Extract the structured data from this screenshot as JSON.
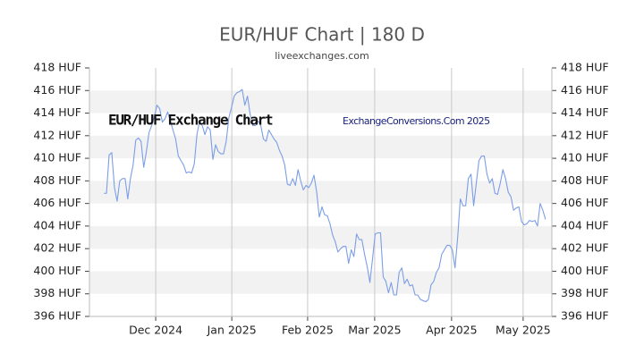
{
  "chart_data": {
    "type": "line",
    "title": "EUR/HUF Chart | 180 D",
    "subtitle": "liveexchanges.com",
    "annotations": [
      "EUR/HUF Exchange Chart",
      "ExchangeConversions.Com 2025"
    ],
    "color": "#7b9ee6",
    "grid": true,
    "xlim": [
      -5.4,
      168.4
    ],
    "xticks": [
      {
        "value": 19.5,
        "label": "Dec 2024"
      },
      {
        "value": 48.1,
        "label": "Jan 2025"
      },
      {
        "value": 76.6,
        "label": "Feb 2025"
      },
      {
        "value": 101.8,
        "label": "Mar 2025"
      },
      {
        "value": 130.7,
        "label": "Apr 2025"
      },
      {
        "value": 157.6,
        "label": "May 2025"
      }
    ],
    "ylim": [
      396,
      418
    ],
    "yticks": [
      {
        "value": 396,
        "label": "396 HUF"
      },
      {
        "value": 398,
        "label": "398 HUF"
      },
      {
        "value": 400,
        "label": "400 HUF"
      },
      {
        "value": 402,
        "label": "402 HUF"
      },
      {
        "value": 404,
        "label": "404 HUF"
      },
      {
        "value": 406,
        "label": "406 HUF"
      },
      {
        "value": 408,
        "label": "408 HUF"
      },
      {
        "value": 410,
        "label": "410 HUF"
      },
      {
        "value": 412,
        "label": "412 HUF"
      },
      {
        "value": 414,
        "label": "414 HUF"
      },
      {
        "value": 416,
        "label": "416 HUF"
      },
      {
        "value": 418,
        "label": "418 HUF"
      }
    ],
    "values": [
      406.9,
      406.9,
      410.3,
      410.5,
      407.4,
      406.2,
      408.0,
      408.2,
      408.2,
      406.4,
      408.2,
      409.4,
      411.6,
      411.8,
      411.5,
      409.2,
      410.6,
      412.3,
      412.9,
      413.7,
      414.7,
      414.4,
      413.2,
      413.5,
      414.1,
      413.3,
      412.5,
      411.7,
      410.2,
      409.8,
      409.4,
      408.7,
      408.8,
      408.7,
      409.5,
      412.1,
      413.3,
      412.9,
      412.1,
      412.8,
      412.5,
      409.9,
      411.2,
      410.6,
      410.4,
      410.4,
      411.5,
      413.6,
      414.5,
      415.5,
      415.8,
      415.9,
      416.1,
      414.7,
      415.5,
      413.9,
      412.9,
      412.9,
      413.3,
      412.9,
      411.7,
      411.5,
      412.5,
      412.1,
      411.7,
      411.4,
      410.7,
      410.2,
      409.4,
      407.7,
      407.6,
      408.2,
      407.6,
      409.0,
      408.0,
      407.2,
      407.6,
      407.4,
      407.8,
      408.5,
      407.0,
      404.8,
      405.7,
      405.0,
      404.9,
      404.2,
      403.2,
      402.6,
      401.7,
      402.0,
      402.2,
      402.2,
      400.7,
      401.9,
      401.3,
      403.3,
      402.8,
      402.8,
      401.5,
      400.4,
      399.0,
      401.1,
      403.3,
      403.4,
      403.4,
      399.5,
      399.1,
      398.1,
      399.0,
      397.9,
      397.9,
      399.9,
      400.3,
      398.9,
      399.3,
      398.7,
      398.8,
      397.9,
      397.9,
      397.5,
      397.4,
      397.3,
      397.5,
      398.8,
      399.1,
      399.9,
      400.3,
      401.5,
      401.9,
      402.3,
      402.3,
      401.9,
      400.3,
      403.0,
      406.4,
      405.8,
      405.8,
      408.2,
      408.6,
      405.8,
      407.8,
      409.8,
      410.2,
      410.2,
      408.6,
      407.8,
      408.2,
      406.9,
      406.8,
      407.8,
      409.0,
      408.2,
      407.0,
      406.6,
      405.4,
      405.6,
      405.7,
      404.4,
      404.1,
      404.2,
      404.5,
      404.4,
      404.5,
      404.0,
      406.0,
      405.4,
      404.6
    ]
  }
}
